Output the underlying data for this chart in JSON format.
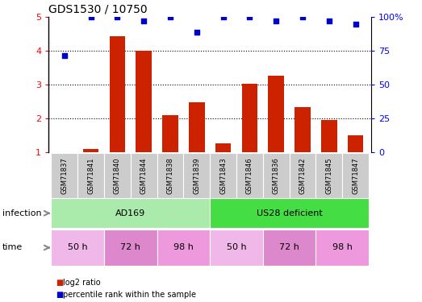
{
  "title": "GDS1530 / 10750",
  "samples": [
    "GSM71837",
    "GSM71841",
    "GSM71840",
    "GSM71844",
    "GSM71838",
    "GSM71839",
    "GSM71843",
    "GSM71846",
    "GSM71836",
    "GSM71842",
    "GSM71845",
    "GSM71847"
  ],
  "log2_ratio": [
    1.0,
    1.1,
    4.43,
    4.0,
    2.1,
    2.47,
    1.28,
    3.03,
    3.27,
    2.33,
    1.95,
    1.5
  ],
  "percentile_rank_right": [
    71.25,
    99.5,
    99.5,
    96.75,
    99.5,
    88.75,
    99.5,
    99.5,
    97.0,
    99.5,
    97.0,
    94.25
  ],
  "bar_color": "#cc2200",
  "dot_color": "#0000cc",
  "ylim_left": [
    1,
    5
  ],
  "ylim_right": [
    0,
    100
  ],
  "yticks_left": [
    1,
    2,
    3,
    4,
    5
  ],
  "yticks_right": [
    0,
    25,
    50,
    75,
    100
  ],
  "ytick_labels_right": [
    "0",
    "25",
    "50",
    "75",
    "100%"
  ],
  "infection_labels": [
    {
      "text": "AD169",
      "start": 0,
      "end": 6,
      "color": "#aaeaaa"
    },
    {
      "text": "US28 deficient",
      "start": 6,
      "end": 12,
      "color": "#44dd44"
    }
  ],
  "time_labels": [
    {
      "text": "50 h",
      "start": 0,
      "end": 2,
      "color": "#f0b8e8"
    },
    {
      "text": "72 h",
      "start": 2,
      "end": 4,
      "color": "#dd88cc"
    },
    {
      "text": "98 h",
      "start": 4,
      "end": 6,
      "color": "#ee99dd"
    },
    {
      "text": "50 h",
      "start": 6,
      "end": 8,
      "color": "#f0b8e8"
    },
    {
      "text": "72 h",
      "start": 8,
      "end": 10,
      "color": "#dd88cc"
    },
    {
      "text": "98 h",
      "start": 10,
      "end": 12,
      "color": "#ee99dd"
    }
  ],
  "legend_items": [
    {
      "label": "log2 ratio",
      "color": "#cc2200"
    },
    {
      "label": "percentile rank within the sample",
      "color": "#0000cc"
    }
  ],
  "xlabel_infection": "infection",
  "xlabel_time": "time",
  "grid_lines": [
    2,
    3,
    4
  ],
  "background_color": "#ffffff",
  "sample_bg": "#cccccc",
  "arrow_color": "#888888",
  "figwidth": 5.23,
  "figheight": 3.75,
  "dpi": 100
}
